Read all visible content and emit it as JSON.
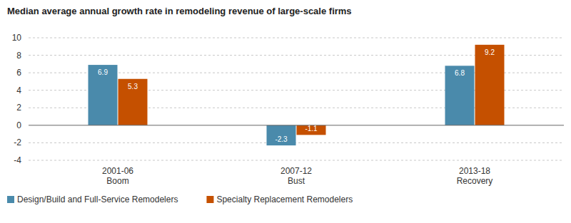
{
  "chart_data": {
    "type": "bar",
    "title": "Median average annual growth rate in remodeling revenue of large-scale firms",
    "categories": [
      "2001-06\nBoom",
      "2007-12\nBust",
      "2013-18\nRecovery"
    ],
    "series": [
      {
        "name": "Design/Build and Full-Service Remodelers",
        "color": "#4a8aab",
        "values": [
          6.9,
          -2.3,
          6.8
        ]
      },
      {
        "name": "Specialty Replacement Remodelers",
        "color": "#c55000",
        "values": [
          5.3,
          -1.1,
          9.2
        ]
      }
    ],
    "ylim": [
      -4,
      10
    ],
    "yticks": [
      -4,
      -2,
      0,
      2,
      4,
      6,
      8,
      10
    ],
    "grid": true,
    "data_labels": true,
    "legend": "bottom"
  }
}
